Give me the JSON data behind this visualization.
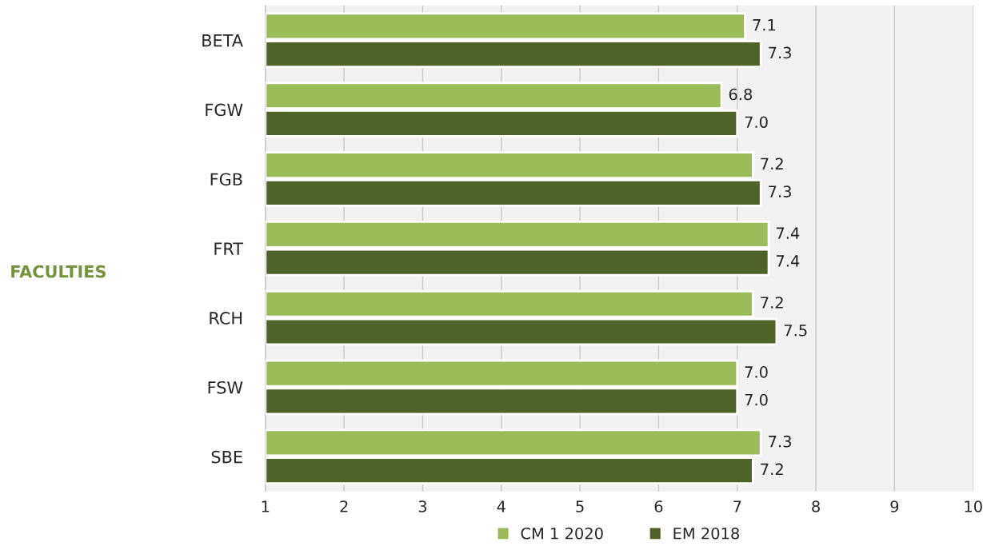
{
  "chart_data": {
    "type": "bar",
    "orientation": "horizontal",
    "annotations": [
      "FACULTIES"
    ],
    "categories": [
      "BETA",
      "FGW",
      "FGB",
      "FRT",
      "RCH",
      "FSW",
      "SBE"
    ],
    "series": [
      {
        "name": "CM 1 2020",
        "color": "#9bbb59",
        "values": [
          7.1,
          6.8,
          7.2,
          7.4,
          7.2,
          7.0,
          7.3
        ],
        "value_labels": [
          "7.1",
          "6.8",
          "7.2",
          "7.4",
          "7.2",
          "7.0",
          "7.3"
        ]
      },
      {
        "name": "EM 2018",
        "color": "#4f6228",
        "values": [
          7.3,
          7.0,
          7.3,
          7.4,
          7.5,
          7.0,
          7.2
        ],
        "value_labels": [
          "7.3",
          "7.0",
          "7.3",
          "7.4",
          "7.5",
          "7.0",
          "7.2"
        ]
      }
    ],
    "xlim": [
      1,
      10
    ],
    "xticks": [
      1,
      2,
      3,
      4,
      5,
      6,
      7,
      8,
      9,
      10
    ],
    "grid": "x",
    "legend": "bottom"
  }
}
